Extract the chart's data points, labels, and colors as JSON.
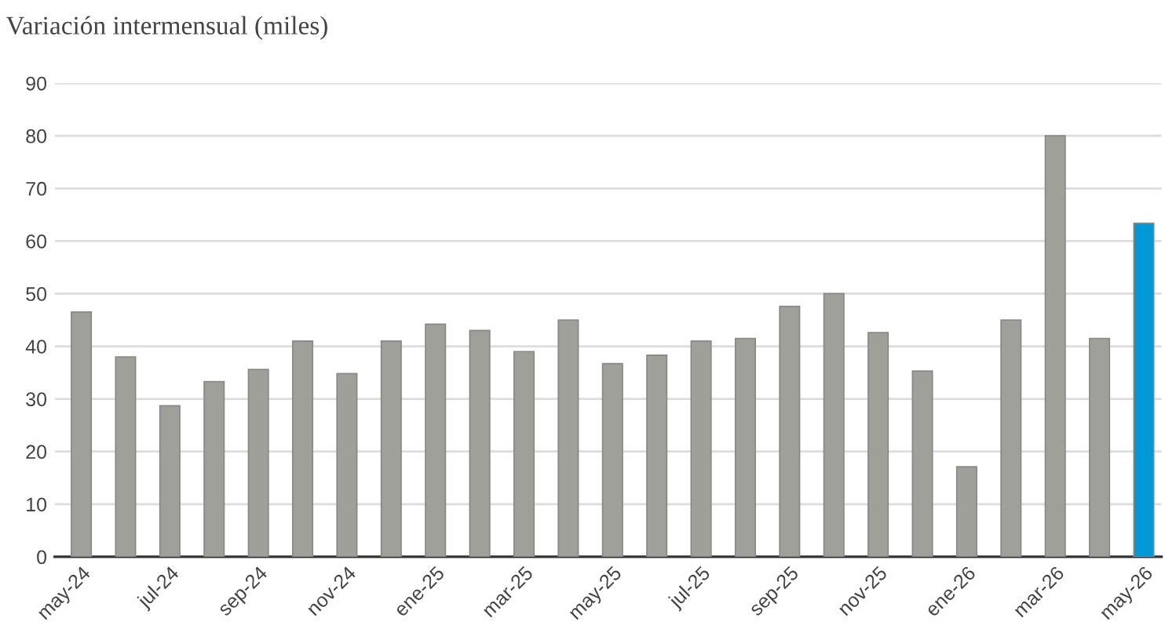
{
  "chart_data": {
    "type": "bar",
    "subtitle": "Variación intermensual (miles)",
    "categories": [
      "may-24",
      null,
      "jul-24",
      null,
      "sep-24",
      null,
      "nov-24",
      null,
      "ene-25",
      null,
      "mar-25",
      null,
      "may-25",
      null,
      "jul-25",
      null,
      "sep-25",
      null,
      "nov-25",
      null,
      "ene-26",
      null,
      "mar-26",
      null,
      "may-26"
    ],
    "values": [
      46.5,
      38,
      28.7,
      33.3,
      35.6,
      41,
      34.8,
      41,
      44.2,
      43,
      39,
      45,
      36.7,
      38.3,
      41,
      41.5,
      47.6,
      50,
      42.6,
      35.3,
      17.1,
      45,
      80,
      41.5,
      63.4
    ],
    "colors": [
      "#a0a09b",
      "#a0a09b",
      "#a0a09b",
      "#a0a09b",
      "#a0a09b",
      "#a0a09b",
      "#a0a09b",
      "#a0a09b",
      "#a0a09b",
      "#a0a09b",
      "#a0a09b",
      "#a0a09b",
      "#a0a09b",
      "#a0a09b",
      "#a0a09b",
      "#a0a09b",
      "#a0a09b",
      "#a0a09b",
      "#a0a09b",
      "#a0a09b",
      "#a0a09b",
      "#a0a09b",
      "#a0a09b",
      "#a0a09b",
      "#0098d6"
    ],
    "ylim": [
      0,
      90
    ],
    "yticks": [
      0,
      10,
      20,
      30,
      40,
      50,
      60,
      70,
      80,
      90
    ],
    "grid": "y",
    "legend": false
  }
}
